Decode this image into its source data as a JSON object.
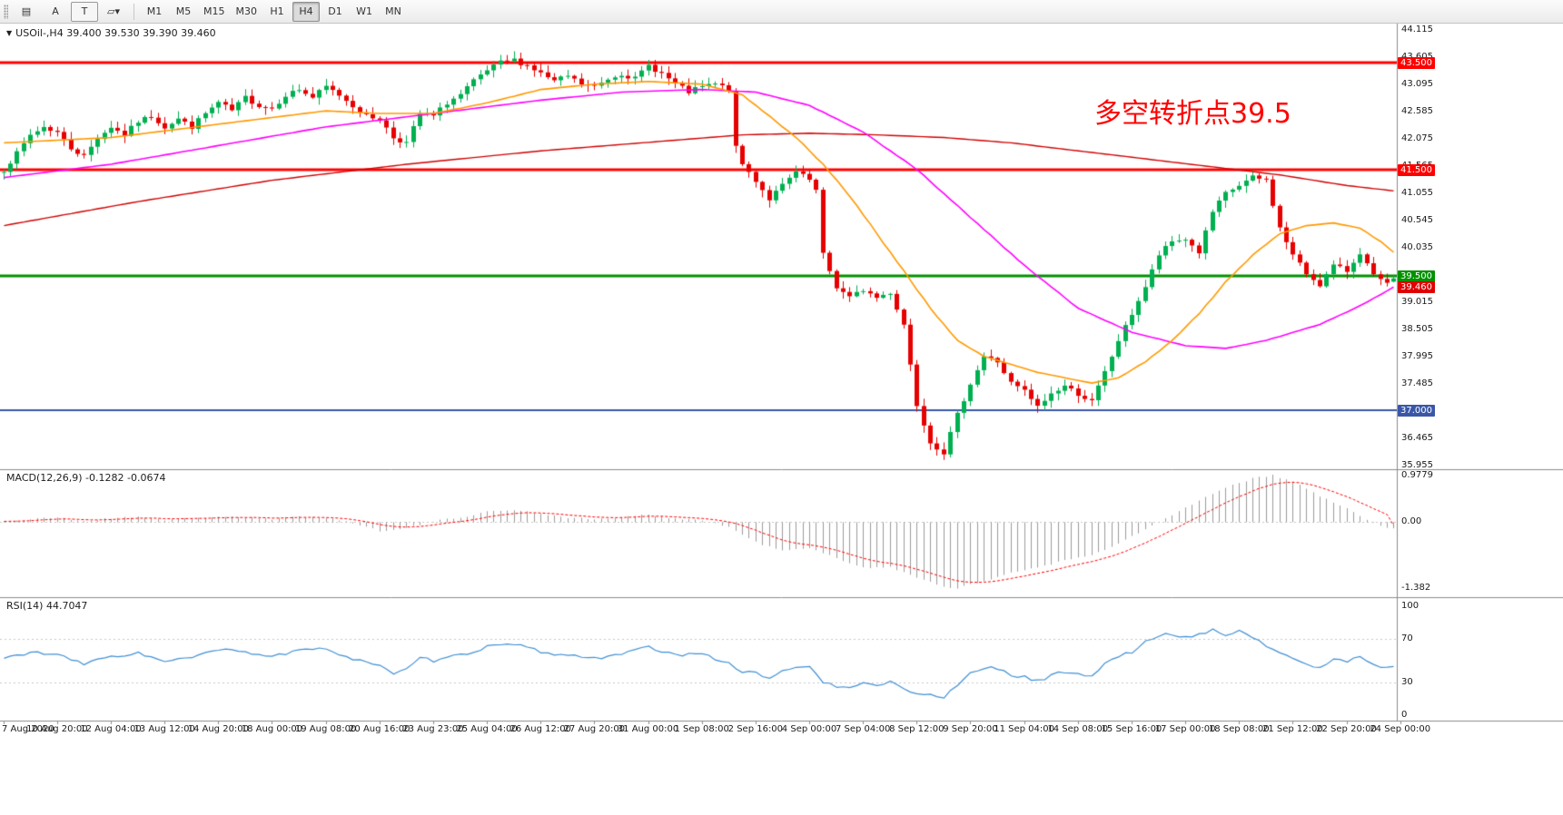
{
  "toolbar": {
    "tools": [
      {
        "name": "chart-layout-icon",
        "label": "▤"
      },
      {
        "name": "pointer-a-tool",
        "label": "A"
      },
      {
        "name": "text-tool",
        "label": "T",
        "boxed": true
      },
      {
        "name": "shapes-dropdown-tool",
        "label": "▱▾"
      }
    ],
    "timeframes": [
      "M1",
      "M5",
      "M15",
      "M30",
      "H1",
      "H4",
      "D1",
      "W1",
      "MN"
    ],
    "active": "H4"
  },
  "labels": {
    "symbol_ohlc": "USOil-,H4 39.400 39.530 39.390 39.460",
    "annotation": "多空转折点39.5"
  },
  "chart_data": {
    "type": "candlestick",
    "symbol": "USOil-",
    "timeframe": "H4",
    "bars": 208,
    "ohlc_quote": {
      "open": 39.4,
      "high": 39.53,
      "low": 39.39,
      "close": 39.46
    },
    "price_axis": {
      "min": 35.955,
      "max": 44.115,
      "ticks": [
        "44.115",
        "43.605",
        "43.095",
        "42.585",
        "42.075",
        "41.565",
        "41.055",
        "40.545",
        "40.035",
        "39.525",
        "39.015",
        "38.505",
        "37.995",
        "37.485",
        "36.975",
        "36.465",
        "35.955"
      ]
    },
    "time_axis": [
      "7 Aug 2020",
      "10 Aug 20:00",
      "12 Aug 04:00",
      "13 Aug 12:00",
      "14 Aug 20:00",
      "18 Aug 00:00",
      "19 Aug 08:00",
      "20 Aug 16:00",
      "23 Aug 23:00",
      "25 Aug 04:00",
      "26 Aug 12:00",
      "27 Aug 20:00",
      "31 Aug 00:00",
      "1 Sep 08:00",
      "2 Sep 16:00",
      "4 Sep 00:00",
      "7 Sep 04:00",
      "8 Sep 12:00",
      "9 Sep 20:00",
      "11 Sep 04:00",
      "14 Sep 08:00",
      "15 Sep 16:00",
      "17 Sep 00:00",
      "18 Sep 08:00",
      "21 Sep 12:00",
      "22 Sep 20:00",
      "24 Sep 00:00"
    ],
    "hlines": [
      {
        "price": 43.5,
        "label": "43.500",
        "color": "#ff0000",
        "width": 3
      },
      {
        "price": 41.5,
        "label": "41.500",
        "color": "#ff0000",
        "width": 3
      },
      {
        "price": 39.5,
        "label": "39.500",
        "color": "#009100",
        "width": 3
      },
      {
        "price": 37.0,
        "label": "37.000",
        "color": "#3a57a7",
        "width": 2
      }
    ],
    "current_price": {
      "value": 39.46,
      "label": "39.460",
      "color": "#e00000"
    },
    "close_keyframes": [
      [
        0,
        41.5
      ],
      [
        2,
        41.8
      ],
      [
        4,
        42.15
      ],
      [
        6,
        42.3
      ],
      [
        8,
        42.2
      ],
      [
        10,
        41.9
      ],
      [
        12,
        41.75
      ],
      [
        14,
        42.1
      ],
      [
        16,
        42.3
      ],
      [
        18,
        42.15
      ],
      [
        20,
        42.4
      ],
      [
        22,
        42.5
      ],
      [
        24,
        42.3
      ],
      [
        26,
        42.45
      ],
      [
        28,
        42.3
      ],
      [
        30,
        42.55
      ],
      [
        32,
        42.75
      ],
      [
        34,
        42.6
      ],
      [
        36,
        42.85
      ],
      [
        38,
        42.7
      ],
      [
        40,
        42.65
      ],
      [
        42,
        42.9
      ],
      [
        44,
        43.0
      ],
      [
        46,
        42.85
      ],
      [
        48,
        43.05
      ],
      [
        50,
        42.9
      ],
      [
        52,
        42.7
      ],
      [
        54,
        42.5
      ],
      [
        56,
        42.45
      ],
      [
        58,
        42.1
      ],
      [
        60,
        42.0
      ],
      [
        62,
        42.55
      ],
      [
        64,
        42.5
      ],
      [
        66,
        42.75
      ],
      [
        68,
        42.9
      ],
      [
        70,
        43.15
      ],
      [
        72,
        43.35
      ],
      [
        74,
        43.5
      ],
      [
        76,
        43.55
      ],
      [
        78,
        43.45
      ],
      [
        80,
        43.3
      ],
      [
        82,
        43.15
      ],
      [
        84,
        43.25
      ],
      [
        86,
        43.1
      ],
      [
        88,
        43.05
      ],
      [
        90,
        43.2
      ],
      [
        92,
        43.3
      ],
      [
        94,
        43.2
      ],
      [
        96,
        43.45
      ],
      [
        98,
        43.3
      ],
      [
        100,
        43.1
      ],
      [
        102,
        42.95
      ],
      [
        104,
        43.05
      ],
      [
        106,
        43.1
      ],
      [
        108,
        43.0
      ],
      [
        109,
        41.9
      ],
      [
        110,
        41.6
      ],
      [
        112,
        41.3
      ],
      [
        114,
        40.95
      ],
      [
        116,
        41.2
      ],
      [
        118,
        41.45
      ],
      [
        120,
        41.3
      ],
      [
        121,
        41.1
      ],
      [
        122,
        39.9
      ],
      [
        124,
        39.3
      ],
      [
        126,
        39.1
      ],
      [
        128,
        39.25
      ],
      [
        130,
        39.1
      ],
      [
        132,
        39.2
      ],
      [
        134,
        38.6
      ],
      [
        136,
        37.1
      ],
      [
        138,
        36.4
      ],
      [
        140,
        36.2
      ],
      [
        142,
        36.9
      ],
      [
        144,
        37.5
      ],
      [
        146,
        38.0
      ],
      [
        148,
        37.9
      ],
      [
        150,
        37.5
      ],
      [
        152,
        37.35
      ],
      [
        154,
        37.05
      ],
      [
        156,
        37.3
      ],
      [
        158,
        37.45
      ],
      [
        160,
        37.3
      ],
      [
        162,
        37.15
      ],
      [
        164,
        37.7
      ],
      [
        166,
        38.3
      ],
      [
        168,
        38.8
      ],
      [
        170,
        39.3
      ],
      [
        172,
        39.9
      ],
      [
        174,
        40.15
      ],
      [
        176,
        40.2
      ],
      [
        178,
        39.95
      ],
      [
        180,
        40.7
      ],
      [
        182,
        41.05
      ],
      [
        184,
        41.2
      ],
      [
        186,
        41.35
      ],
      [
        188,
        41.3
      ],
      [
        190,
        40.4
      ],
      [
        192,
        39.9
      ],
      [
        194,
        39.55
      ],
      [
        196,
        39.35
      ],
      [
        198,
        39.7
      ],
      [
        200,
        39.6
      ],
      [
        202,
        39.95
      ],
      [
        204,
        39.5
      ],
      [
        206,
        39.35
      ],
      [
        207,
        39.46
      ]
    ],
    "ma_red": [
      [
        0,
        40.45
      ],
      [
        20,
        40.9
      ],
      [
        40,
        41.3
      ],
      [
        60,
        41.6
      ],
      [
        80,
        41.85
      ],
      [
        100,
        42.05
      ],
      [
        110,
        42.15
      ],
      [
        120,
        42.18
      ],
      [
        130,
        42.15
      ],
      [
        140,
        42.1
      ],
      [
        150,
        42.0
      ],
      [
        160,
        41.85
      ],
      [
        170,
        41.7
      ],
      [
        180,
        41.55
      ],
      [
        190,
        41.4
      ],
      [
        200,
        41.2
      ],
      [
        207,
        41.1
      ]
    ],
    "ma_magenta": [
      [
        0,
        41.35
      ],
      [
        16,
        41.6
      ],
      [
        32,
        41.95
      ],
      [
        48,
        42.3
      ],
      [
        64,
        42.55
      ],
      [
        80,
        42.8
      ],
      [
        92,
        42.95
      ],
      [
        104,
        43.0
      ],
      [
        112,
        42.95
      ],
      [
        120,
        42.7
      ],
      [
        128,
        42.2
      ],
      [
        136,
        41.5
      ],
      [
        144,
        40.6
      ],
      [
        152,
        39.7
      ],
      [
        160,
        38.9
      ],
      [
        168,
        38.45
      ],
      [
        176,
        38.2
      ],
      [
        182,
        38.15
      ],
      [
        188,
        38.3
      ],
      [
        196,
        38.6
      ],
      [
        202,
        38.95
      ],
      [
        207,
        39.3
      ]
    ],
    "ma_orange": [
      [
        0,
        42.0
      ],
      [
        16,
        42.1
      ],
      [
        32,
        42.35
      ],
      [
        48,
        42.6
      ],
      [
        56,
        42.55
      ],
      [
        64,
        42.55
      ],
      [
        72,
        42.75
      ],
      [
        80,
        43.0
      ],
      [
        88,
        43.1
      ],
      [
        96,
        43.15
      ],
      [
        104,
        43.1
      ],
      [
        110,
        42.9
      ],
      [
        114,
        42.5
      ],
      [
        118,
        42.1
      ],
      [
        122,
        41.6
      ],
      [
        126,
        41.0
      ],
      [
        130,
        40.3
      ],
      [
        134,
        39.6
      ],
      [
        138,
        38.9
      ],
      [
        142,
        38.3
      ],
      [
        146,
        38.0
      ],
      [
        150,
        37.85
      ],
      [
        154,
        37.7
      ],
      [
        158,
        37.6
      ],
      [
        162,
        37.5
      ],
      [
        166,
        37.6
      ],
      [
        170,
        37.9
      ],
      [
        174,
        38.3
      ],
      [
        178,
        38.8
      ],
      [
        182,
        39.4
      ],
      [
        186,
        39.9
      ],
      [
        190,
        40.3
      ],
      [
        194,
        40.45
      ],
      [
        198,
        40.5
      ],
      [
        202,
        40.4
      ],
      [
        205,
        40.15
      ],
      [
        207,
        39.95
      ]
    ],
    "macd": {
      "label": "MACD(12,26,9) -0.1282 -0.0674",
      "value": -0.1282,
      "signal": -0.0674,
      "ticks": [
        "0.9779",
        "0.00",
        "-1.382"
      ],
      "max": 0.9779,
      "min": -1.382,
      "keyframes": [
        [
          0,
          0.02
        ],
        [
          8,
          0.1
        ],
        [
          12,
          0.02
        ],
        [
          16,
          0.08
        ],
        [
          20,
          0.12
        ],
        [
          24,
          0.05
        ],
        [
          28,
          0.08
        ],
        [
          32,
          0.12
        ],
        [
          36,
          0.1
        ],
        [
          40,
          0.06
        ],
        [
          44,
          0.12
        ],
        [
          48,
          0.1
        ],
        [
          52,
          -0.02
        ],
        [
          56,
          -0.18
        ],
        [
          60,
          -0.12
        ],
        [
          64,
          0.02
        ],
        [
          68,
          0.1
        ],
        [
          72,
          0.22
        ],
        [
          76,
          0.26
        ],
        [
          80,
          0.18
        ],
        [
          84,
          0.1
        ],
        [
          88,
          0.06
        ],
        [
          92,
          0.1
        ],
        [
          96,
          0.16
        ],
        [
          100,
          0.08
        ],
        [
          104,
          0.04
        ],
        [
          108,
          -0.1
        ],
        [
          112,
          -0.42
        ],
        [
          116,
          -0.6
        ],
        [
          120,
          -0.55
        ],
        [
          124,
          -0.75
        ],
        [
          128,
          -0.95
        ],
        [
          132,
          -0.95
        ],
        [
          136,
          -1.15
        ],
        [
          140,
          -1.35
        ],
        [
          142,
          -1.38
        ],
        [
          146,
          -1.25
        ],
        [
          150,
          -1.05
        ],
        [
          154,
          -0.95
        ],
        [
          158,
          -0.8
        ],
        [
          162,
          -0.7
        ],
        [
          166,
          -0.45
        ],
        [
          170,
          -0.15
        ],
        [
          174,
          0.15
        ],
        [
          178,
          0.45
        ],
        [
          182,
          0.72
        ],
        [
          186,
          0.92
        ],
        [
          189,
          0.98
        ],
        [
          192,
          0.85
        ],
        [
          196,
          0.55
        ],
        [
          200,
          0.28
        ],
        [
          203,
          0.05
        ],
        [
          205,
          -0.08
        ],
        [
          207,
          -0.1282
        ]
      ]
    },
    "rsi": {
      "label": "RSI(14) 44.7047",
      "value": 44.7047,
      "ticks": [
        "100",
        "70",
        "30",
        "0"
      ],
      "levels": [
        70,
        30
      ],
      "keyframes": [
        [
          0,
          52
        ],
        [
          4,
          58
        ],
        [
          8,
          55
        ],
        [
          12,
          47
        ],
        [
          16,
          54
        ],
        [
          20,
          57
        ],
        [
          24,
          49
        ],
        [
          28,
          53
        ],
        [
          32,
          60
        ],
        [
          36,
          58
        ],
        [
          40,
          54
        ],
        [
          44,
          59
        ],
        [
          48,
          61
        ],
        [
          52,
          52
        ],
        [
          56,
          46
        ],
        [
          58,
          37
        ],
        [
          60,
          42
        ],
        [
          62,
          52
        ],
        [
          64,
          50
        ],
        [
          68,
          55
        ],
        [
          72,
          63
        ],
        [
          76,
          65
        ],
        [
          80,
          58
        ],
        [
          84,
          55
        ],
        [
          88,
          52
        ],
        [
          92,
          57
        ],
        [
          96,
          62
        ],
        [
          100,
          55
        ],
        [
          104,
          56
        ],
        [
          108,
          48
        ],
        [
          110,
          40
        ],
        [
          112,
          38
        ],
        [
          114,
          35
        ],
        [
          116,
          40
        ],
        [
          118,
          45
        ],
        [
          120,
          44
        ],
        [
          122,
          30
        ],
        [
          124,
          26
        ],
        [
          126,
          25
        ],
        [
          128,
          30
        ],
        [
          130,
          28
        ],
        [
          132,
          30
        ],
        [
          134,
          25
        ],
        [
          136,
          20
        ],
        [
          138,
          18
        ],
        [
          140,
          17
        ],
        [
          142,
          28
        ],
        [
          144,
          38
        ],
        [
          146,
          44
        ],
        [
          148,
          42
        ],
        [
          150,
          37
        ],
        [
          152,
          35
        ],
        [
          154,
          31
        ],
        [
          156,
          37
        ],
        [
          158,
          40
        ],
        [
          160,
          38
        ],
        [
          162,
          36
        ],
        [
          164,
          47
        ],
        [
          166,
          54
        ],
        [
          168,
          58
        ],
        [
          170,
          68
        ],
        [
          172,
          72
        ],
        [
          174,
          75
        ],
        [
          176,
          71
        ],
        [
          178,
          74
        ],
        [
          180,
          79
        ],
        [
          182,
          73
        ],
        [
          184,
          77
        ],
        [
          186,
          72
        ],
        [
          188,
          64
        ],
        [
          190,
          57
        ],
        [
          192,
          52
        ],
        [
          194,
          46
        ],
        [
          196,
          44
        ],
        [
          198,
          51
        ],
        [
          200,
          49
        ],
        [
          202,
          54
        ],
        [
          204,
          46
        ],
        [
          206,
          44
        ],
        [
          207,
          44.7
        ]
      ]
    },
    "colors": {
      "up": "#00b050",
      "down": "#e60000",
      "ma_red": "#d10000",
      "ma_magenta": "#ff00ff",
      "ma_orange": "#ff9900",
      "macd_hist": "#9b9b9b",
      "macd_signal": "#ff0000",
      "rsi": "#4090d5",
      "grid": "#c8c8c8",
      "frame": "#8c8c8c",
      "axis_text": "#1a1a1a"
    }
  }
}
